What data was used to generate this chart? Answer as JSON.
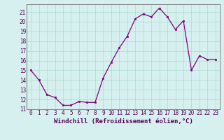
{
  "x": [
    0,
    1,
    2,
    3,
    4,
    5,
    6,
    7,
    8,
    9,
    10,
    11,
    12,
    13,
    14,
    15,
    16,
    17,
    18,
    19,
    20,
    21,
    22,
    23
  ],
  "y": [
    15,
    14,
    12.5,
    12.2,
    11.4,
    11.4,
    11.8,
    11.7,
    11.7,
    14.2,
    15.8,
    17.3,
    18.5,
    20.3,
    20.8,
    20.5,
    21.4,
    20.5,
    19.2,
    20.1,
    15.0,
    16.5,
    16.1,
    16.1
  ],
  "line_color": "#800080",
  "marker": "s",
  "markersize": 2.0,
  "linewidth": 0.9,
  "xlabel": "Windchill (Refroidissement éolien,°C)",
  "xlabel_fontsize": 6.5,
  "ylabel_ticks": [
    11,
    12,
    13,
    14,
    15,
    16,
    17,
    18,
    19,
    20,
    21
  ],
  "xlim": [
    -0.5,
    23.5
  ],
  "ylim": [
    11,
    21.8
  ],
  "bg_color": "#d5f0ee",
  "grid_color": "#aaddcc",
  "tick_fontsize": 5.5,
  "title": ""
}
